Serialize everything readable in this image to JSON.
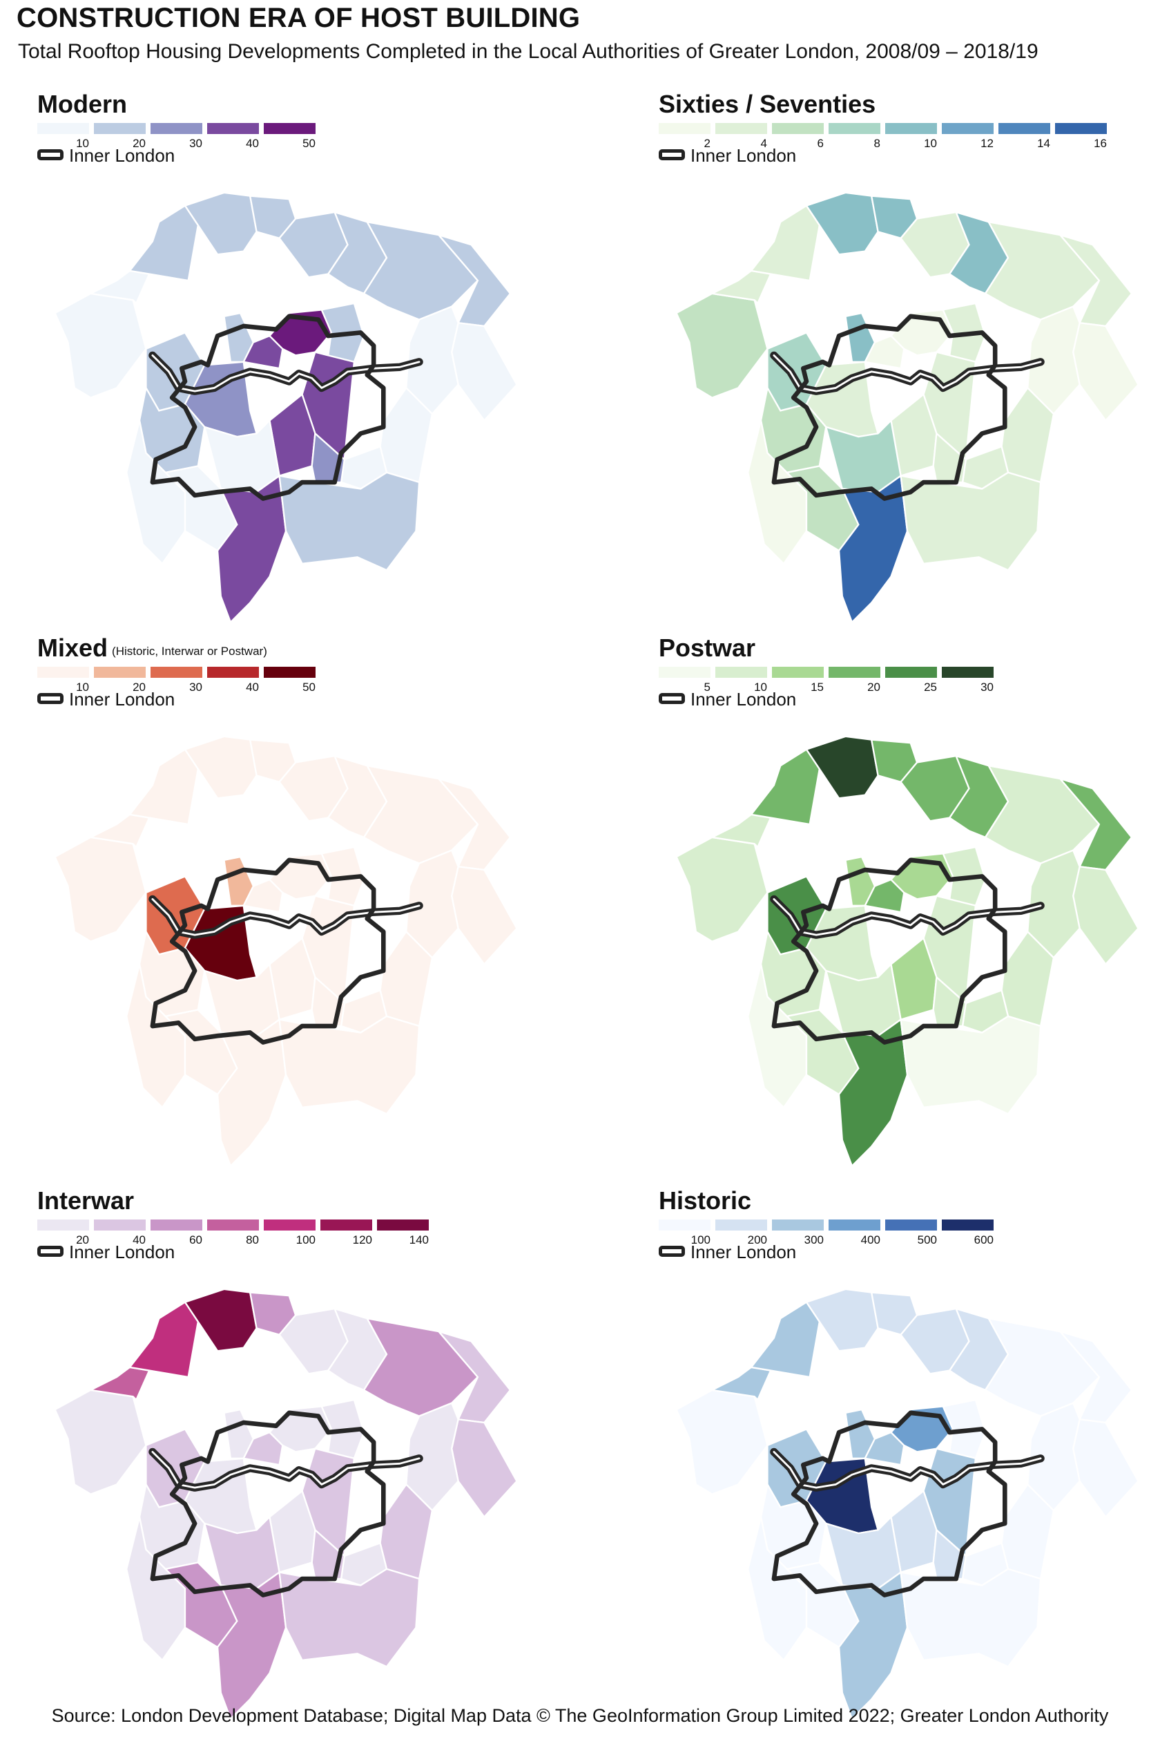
{
  "title": "CONSTRUCTION ERA OF HOST BUILDING",
  "subtitle": "Total Rooftop Housing Developments Completed in the Local Authorities of Greater London, 2008/09 – 2018/19",
  "source": "Source: London Development Database; Digital Map Data © The GeoInformation Group Limited 2022; Greater London Authority",
  "inner_london_label": "Inner London",
  "panels": [
    {
      "id": "modern",
      "title": "Modern",
      "note": "",
      "colors": [
        "#f1f6fb",
        "#bccce2",
        "#8f93c6",
        "#7a4a9f",
        "#6b1a7c"
      ],
      "ticks": [
        "10",
        "20",
        "30",
        "40",
        "50"
      ],
      "region_class": [
        0,
        0,
        1,
        1,
        1,
        1,
        1,
        1,
        1,
        0,
        0,
        0,
        0,
        1,
        1,
        2,
        3,
        4,
        1,
        3,
        3,
        2,
        1,
        0,
        0,
        0,
        3,
        1
      ]
    },
    {
      "id": "sixties",
      "title": "Sixties / Seventies",
      "note": "",
      "colors": [
        "#f3f9ec",
        "#dff0d8",
        "#c2e2c2",
        "#a9d6c6",
        "#89bfc6",
        "#6ea4c8",
        "#4f86bd",
        "#3466ab"
      ],
      "ticks": [
        "2",
        "4",
        "6",
        "8",
        "10",
        "12",
        "14",
        "16"
      ],
      "region_class": [
        2,
        1,
        1,
        4,
        4,
        1,
        4,
        1,
        1,
        0,
        0,
        1,
        1,
        3,
        4,
        1,
        0,
        0,
        1,
        1,
        1,
        1,
        2,
        3,
        0,
        2,
        7,
        1
      ]
    },
    {
      "id": "mixed",
      "title": "Mixed",
      "note": "(Historic, Interwar or Postwar)",
      "colors": [
        "#fdf3ee",
        "#f1b89b",
        "#de6b4f",
        "#b7282b",
        "#66000d"
      ],
      "ticks": [
        "10",
        "20",
        "30",
        "40",
        "50"
      ],
      "region_class": [
        0,
        0,
        0,
        0,
        0,
        0,
        0,
        0,
        0,
        0,
        0,
        0,
        0,
        2,
        1,
        4,
        0,
        0,
        0,
        0,
        0,
        0,
        0,
        0,
        0,
        0,
        0,
        0
      ]
    },
    {
      "id": "postwar",
      "title": "Postwar",
      "note": "",
      "colors": [
        "#f4faef",
        "#d8eecf",
        "#a9d993",
        "#74b76a",
        "#4a8f48",
        "#28462a"
      ],
      "ticks": [
        "5",
        "10",
        "15",
        "20",
        "25",
        "30"
      ],
      "region_class": [
        1,
        1,
        3,
        5,
        3,
        3,
        3,
        1,
        3,
        1,
        1,
        1,
        1,
        4,
        2,
        1,
        3,
        2,
        1,
        1,
        2,
        1,
        1,
        1,
        0,
        1,
        4,
        0
      ]
    },
    {
      "id": "interwar",
      "title": "Interwar",
      "note": "",
      "colors": [
        "#ebe7f2",
        "#dbc6e2",
        "#c996c8",
        "#c4609e",
        "#c02f7e",
        "#991655",
        "#7a0a40"
      ],
      "ticks": [
        "20",
        "40",
        "60",
        "80",
        "100",
        "120",
        "140"
      ],
      "region_class": [
        0,
        3,
        4,
        6,
        2,
        0,
        0,
        2,
        1,
        1,
        0,
        1,
        0,
        1,
        0,
        0,
        1,
        0,
        0,
        1,
        0,
        1,
        0,
        1,
        0,
        2,
        2,
        1
      ]
    },
    {
      "id": "historic",
      "title": "Historic",
      "note": "",
      "colors": [
        "#f5f9ff",
        "#d5e2f2",
        "#a9c8e0",
        "#6e9fcf",
        "#4571b6",
        "#1d2f6b"
      ],
      "ticks": [
        "100",
        "200",
        "300",
        "400",
        "500",
        "600"
      ],
      "region_class": [
        0,
        2,
        2,
        1,
        1,
        1,
        1,
        0,
        0,
        0,
        0,
        0,
        0,
        2,
        2,
        5,
        2,
        3,
        0,
        2,
        1,
        1,
        0,
        1,
        0,
        0,
        2,
        0
      ]
    }
  ]
}
